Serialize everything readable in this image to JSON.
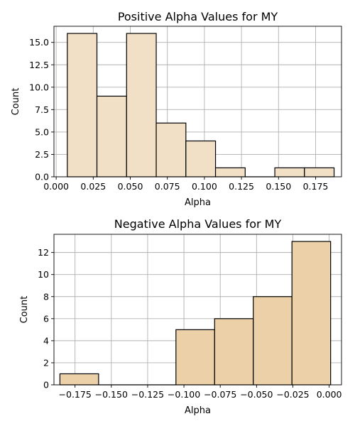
{
  "chart_data": [
    {
      "type": "histogram",
      "title": "Positive Alpha Values for MY",
      "xlabel": "Alpha",
      "ylabel": "Count",
      "bar_color": "#f1e0c6",
      "grid": true,
      "xlim": [
        -0.0015,
        0.1925
      ],
      "ylim": [
        0,
        16.8
      ],
      "xticks": [
        0.0,
        0.025,
        0.05,
        0.075,
        0.1,
        0.125,
        0.15,
        0.175
      ],
      "xtick_labels": [
        "0.000",
        "0.025",
        "0.050",
        "0.075",
        "0.100",
        "0.125",
        "0.150",
        "0.175"
      ],
      "yticks": [
        0,
        2.5,
        5,
        7.5,
        10,
        12.5,
        15
      ],
      "ytick_labels": [
        "0.0",
        "2.5",
        "5.0",
        "7.5",
        "10.0",
        "12.5",
        "15.0"
      ],
      "bin_edges": [
        0.0075,
        0.0275,
        0.0475,
        0.0675,
        0.0875,
        0.1075,
        0.1275,
        0.1475,
        0.1675,
        0.1875
      ],
      "bin_edges_note": "",
      "counts": [
        16,
        9,
        16,
        6,
        4,
        1,
        0,
        1,
        1
      ]
    },
    {
      "type": "histogram",
      "title": "Negative Alpha Values for MY",
      "xlabel": "Alpha",
      "ylabel": "Count",
      "bar_color": "#ecd0a8",
      "grid": true,
      "xlim": [
        -0.1895,
        0.0085
      ],
      "ylim": [
        0,
        13.65
      ],
      "xticks": [
        -0.175,
        -0.15,
        -0.125,
        -0.1,
        -0.075,
        -0.05,
        -0.025,
        0.0
      ],
      "xtick_labels": [
        "−0.175",
        "−0.150",
        "−0.125",
        "−0.100",
        "−0.075",
        "−0.050",
        "−0.025",
        "0.000"
      ],
      "yticks": [
        0,
        2,
        4,
        6,
        8,
        10,
        12
      ],
      "ytick_labels": [
        "0",
        "2",
        "4",
        "6",
        "8",
        "10",
        "12"
      ],
      "bin_edges": [
        -0.181,
        -0.156,
        -0.131,
        -0.106,
        -0.081,
        -0.056,
        -0.031,
        -0.006
      ],
      "counts": [
        1,
        0,
        0,
        5,
        6,
        8,
        13
      ]
    }
  ]
}
